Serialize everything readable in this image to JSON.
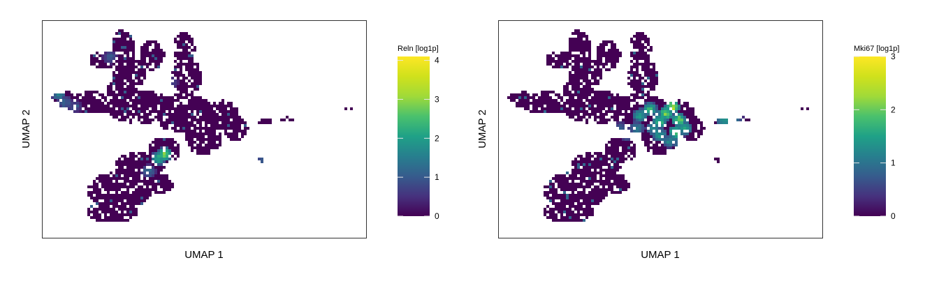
{
  "chart_data": [
    {
      "type": "hexbin",
      "xlabel": "UMAP 1",
      "ylabel": "UMAP 2",
      "grid": false,
      "legend": {
        "title": "Reln [log1p]",
        "position": "right",
        "colormap": "viridis",
        "range": [
          0,
          4.1
        ],
        "ticks": [
          0,
          1,
          2,
          3,
          4
        ],
        "tick_labels": [
          "0",
          "1",
          "2",
          "3",
          "4"
        ]
      },
      "base_value": 0,
      "hotspots": [
        {
          "x": 0.38,
          "y": 0.62,
          "value": 3.5
        },
        {
          "x": 0.36,
          "y": 0.64,
          "value": 2.8
        },
        {
          "x": 0.05,
          "y": 0.34,
          "value": 1.9
        },
        {
          "x": 0.07,
          "y": 0.38,
          "value": 1.4
        },
        {
          "x": 0.1,
          "y": 0.4,
          "value": 1.0
        },
        {
          "x": 0.33,
          "y": 0.7,
          "value": 1.5
        },
        {
          "x": 0.21,
          "y": 0.17,
          "value": 1.2
        },
        {
          "x": 0.68,
          "y": 0.65,
          "value": 1.3
        },
        {
          "x": 0.4,
          "y": 0.29,
          "value": 0.9
        }
      ]
    },
    {
      "type": "hexbin",
      "xlabel": "UMAP 1",
      "ylabel": "UMAP 2",
      "grid": false,
      "legend": {
        "title": "Mki67 [log1p]",
        "position": "right",
        "colormap": "viridis",
        "range": [
          0,
          3
        ],
        "ticks": [
          0,
          1,
          2,
          3
        ],
        "tick_labels": [
          "0",
          "1",
          "2",
          "3"
        ]
      },
      "base_value": 0,
      "hotspots": [
        {
          "x": 0.54,
          "y": 0.4,
          "value": 2.9
        },
        {
          "x": 0.52,
          "y": 0.43,
          "value": 2.6
        },
        {
          "x": 0.56,
          "y": 0.46,
          "value": 2.5
        },
        {
          "x": 0.5,
          "y": 0.47,
          "value": 2.3
        },
        {
          "x": 0.55,
          "y": 0.52,
          "value": 2.4
        },
        {
          "x": 0.47,
          "y": 0.41,
          "value": 2.1
        },
        {
          "x": 0.44,
          "y": 0.44,
          "value": 1.9
        },
        {
          "x": 0.58,
          "y": 0.5,
          "value": 2.0
        },
        {
          "x": 0.5,
          "y": 0.53,
          "value": 1.8
        },
        {
          "x": 0.48,
          "y": 0.5,
          "value": 1.6
        },
        {
          "x": 0.43,
          "y": 0.5,
          "value": 1.4
        },
        {
          "x": 0.4,
          "y": 0.53,
          "value": 1.2
        },
        {
          "x": 0.53,
          "y": 0.56,
          "value": 1.5
        },
        {
          "x": 0.56,
          "y": 0.56,
          "value": 1.3
        },
        {
          "x": 0.7,
          "y": 0.46,
          "value": 1.8
        },
        {
          "x": 0.72,
          "y": 0.47,
          "value": 1.5
        },
        {
          "x": 0.74,
          "y": 0.46,
          "value": 1.1
        },
        {
          "x": 0.38,
          "y": 0.5,
          "value": 0.9
        }
      ]
    }
  ]
}
